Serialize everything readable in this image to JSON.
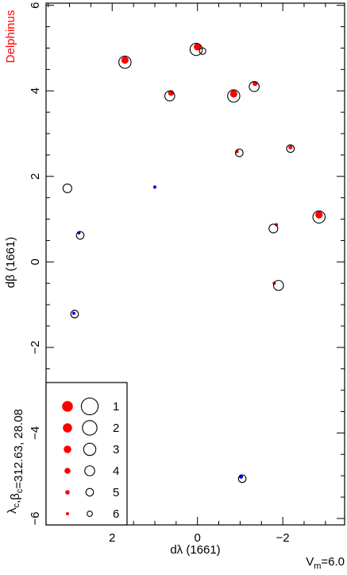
{
  "chart_data": {
    "type": "scatter",
    "title": "Delphinus",
    "xlabel": "dλ (1661)",
    "ylabel": "dβ (1661)",
    "xlim": [
      3.55,
      -3.45
    ],
    "ylim": [
      -6.15,
      6.05
    ],
    "x_reversed": true,
    "x_ticks": [
      {
        "value": 2,
        "label": "2"
      },
      {
        "value": 0,
        "label": "0"
      },
      {
        "value": -2,
        "label": "−2"
      }
    ],
    "y_ticks": [
      {
        "value": 6,
        "label": "6"
      },
      {
        "value": 4,
        "label": "4"
      },
      {
        "value": 2,
        "label": "2"
      },
      {
        "value": 0,
        "label": "0"
      },
      {
        "value": -2,
        "label": "−2"
      },
      {
        "value": -4,
        "label": "−4"
      },
      {
        "value": -6,
        "label": "−6"
      }
    ],
    "center_label": "λc,βc=312.63, 28.08",
    "vmag_label": "Vm=6.0",
    "colors": {
      "catalog_marker": "#ff0000",
      "catalog_faint": "#0000ff",
      "modern_marker": "#000000",
      "title": "#ff0000"
    },
    "legend": {
      "placement": "bottom-left",
      "entries": [
        {
          "magnitude": "1"
        },
        {
          "magnitude": "2"
        },
        {
          "magnitude": "3"
        },
        {
          "magnitude": "4"
        },
        {
          "magnitude": "5"
        },
        {
          "magnitude": "6"
        }
      ]
    },
    "catalog_points": [
      {
        "x": 1.7,
        "y": 4.72,
        "mag": 3,
        "color": "red"
      },
      {
        "x": 0.0,
        "y": 5.03,
        "mag": 3,
        "color": "red"
      },
      {
        "x": 0.62,
        "y": 3.95,
        "mag": 4,
        "color": "red"
      },
      {
        "x": -0.85,
        "y": 3.93,
        "mag": 3,
        "color": "red"
      },
      {
        "x": -1.35,
        "y": 4.17,
        "mag": 4.5,
        "color": "red"
      },
      {
        "x": -0.93,
        "y": 2.58,
        "mag": 5.5,
        "color": "red"
      },
      {
        "x": -2.18,
        "y": 2.68,
        "mag": 5,
        "color": "red"
      },
      {
        "x": -2.85,
        "y": 1.1,
        "mag": 3,
        "color": "red"
      },
      {
        "x": -1.85,
        "y": 0.87,
        "mag": 5.5,
        "color": "red"
      },
      {
        "x": -1.8,
        "y": -0.5,
        "mag": 5.5,
        "color": "red"
      },
      {
        "x": 1.0,
        "y": 1.75,
        "mag": 5.5,
        "color": "blue"
      },
      {
        "x": 2.78,
        "y": 0.68,
        "mag": 5.5,
        "color": "blue"
      },
      {
        "x": 2.9,
        "y": -1.2,
        "mag": 5.5,
        "color": "blue"
      },
      {
        "x": -1.02,
        "y": -5.02,
        "mag": 5,
        "color": "blue"
      }
    ],
    "modern_points": [
      {
        "x": 1.7,
        "y": 4.67,
        "mag": 3
      },
      {
        "x": 0.03,
        "y": 4.97,
        "mag": 3
      },
      {
        "x": -0.12,
        "y": 4.93,
        "mag": 5.5
      },
      {
        "x": 0.65,
        "y": 3.88,
        "mag": 4
      },
      {
        "x": -0.85,
        "y": 3.88,
        "mag": 3
      },
      {
        "x": -1.33,
        "y": 4.1,
        "mag": 4
      },
      {
        "x": -0.98,
        "y": 2.55,
        "mag": 5
      },
      {
        "x": -2.18,
        "y": 2.65,
        "mag": 5
      },
      {
        "x": 3.05,
        "y": 1.72,
        "mag": 4.5
      },
      {
        "x": 2.75,
        "y": 0.62,
        "mag": 5
      },
      {
        "x": -1.78,
        "y": 0.78,
        "mag": 4.5
      },
      {
        "x": -2.85,
        "y": 1.05,
        "mag": 3
      },
      {
        "x": -1.9,
        "y": -0.55,
        "mag": 4
      },
      {
        "x": 2.88,
        "y": -1.22,
        "mag": 5
      },
      {
        "x": -1.05,
        "y": -5.07,
        "mag": 5
      }
    ]
  }
}
